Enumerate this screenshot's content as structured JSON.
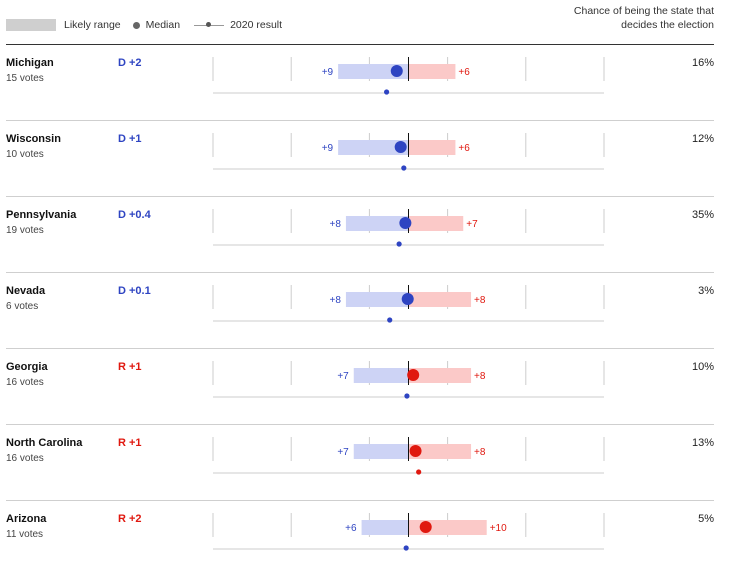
{
  "legend": {
    "likely_range": "Likely range",
    "median": "Median",
    "result_2020": "2020 result"
  },
  "column_header": "Chance of being the state that decides the election",
  "colors": {
    "dem": "#2e44c2",
    "rep": "#e0180f",
    "dem_range": "#cdd3f5",
    "rep_range": "#fbc9c8",
    "gridline": "#cccccc",
    "center": "#111111"
  },
  "chart_data": {
    "type": "range",
    "x_domain": [
      -25,
      25
    ],
    "x_ticks": [
      -25,
      -15,
      -5,
      5,
      15,
      25
    ],
    "note": "margins are signed: negative = Democratic lead, positive = Republican lead",
    "states": [
      {
        "name": "Michigan",
        "votes": "15 votes",
        "margin_label": "D +2",
        "party": "D",
        "median": -1.5,
        "range_low": -9,
        "range_high": 6,
        "low_label": "+9",
        "high_label": "+6",
        "result_2020": -2.8,
        "chance": "16%"
      },
      {
        "name": "Wisconsin",
        "votes": "10 votes",
        "margin_label": "D +1",
        "party": "D",
        "median": -1,
        "range_low": -9,
        "range_high": 6,
        "low_label": "+9",
        "high_label": "+6",
        "result_2020": -0.6,
        "chance": "12%"
      },
      {
        "name": "Pennsylvania",
        "votes": "19 votes",
        "margin_label": "D +0.4",
        "party": "D",
        "median": -0.4,
        "range_low": -8,
        "range_high": 7,
        "low_label": "+8",
        "high_label": "+7",
        "result_2020": -1.2,
        "chance": "35%"
      },
      {
        "name": "Nevada",
        "votes": "6 votes",
        "margin_label": "D +0.1",
        "party": "D",
        "median": -0.1,
        "range_low": -8,
        "range_high": 8,
        "low_label": "+8",
        "high_label": "+8",
        "result_2020": -2.4,
        "chance": "3%"
      },
      {
        "name": "Georgia",
        "votes": "16 votes",
        "margin_label": "R +1",
        "party": "R",
        "median": 0.6,
        "range_low": -7,
        "range_high": 8,
        "low_label": "+7",
        "high_label": "+8",
        "result_2020": -0.2,
        "chance": "10%"
      },
      {
        "name": "North Carolina",
        "votes": "16 votes",
        "margin_label": "R +1",
        "party": "R",
        "median": 0.9,
        "range_low": -7,
        "range_high": 8,
        "low_label": "+7",
        "high_label": "+8",
        "result_2020": 1.3,
        "chance": "13%"
      },
      {
        "name": "Arizona",
        "votes": "11 votes",
        "margin_label": "R +2",
        "party": "R",
        "median": 2.2,
        "range_low": -6,
        "range_high": 10,
        "low_label": "+6",
        "high_label": "+10",
        "result_2020": -0.3,
        "chance": "5%"
      }
    ]
  }
}
